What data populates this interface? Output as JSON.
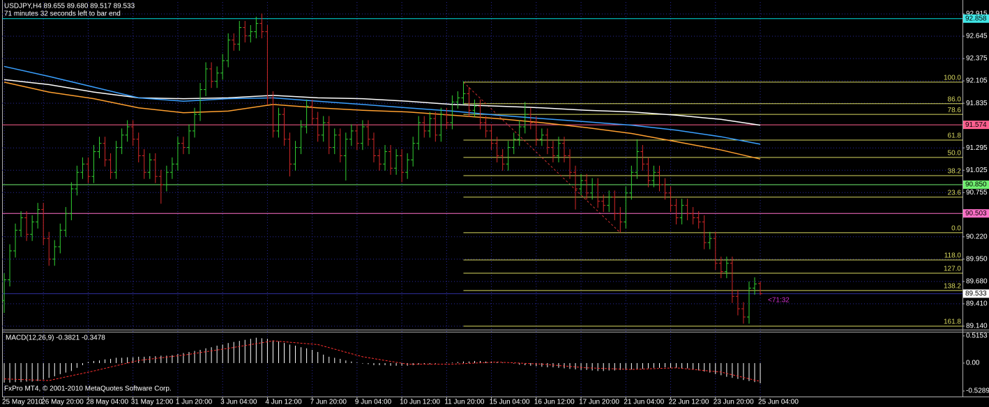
{
  "chart_data": [
    {
      "type": "ohlc",
      "title": "USDJPY,H4  89.655 89.680 89.517 89.533",
      "subtitle": "71 minutes 32 seconds left to bar end",
      "countdown": "<71:32",
      "footer": "FxPro MT4, © 2001-2010 MetaQuotes Software Corp.",
      "categories": [
        "25 May 2010",
        null,
        null,
        null,
        null,
        null,
        null,
        "26 May 20:00",
        null,
        null,
        null,
        null,
        null,
        null,
        null,
        "28 May 04:00",
        null,
        null,
        null,
        null,
        null,
        null,
        null,
        "31 May 12:00",
        null,
        null,
        null,
        null,
        null,
        null,
        null,
        "1 Jun 20:00",
        null,
        null,
        null,
        null,
        null,
        null,
        null,
        "3 Jun 04:00",
        null,
        null,
        null,
        null,
        null,
        null,
        null,
        "4 Jun 12:00",
        null,
        null,
        null,
        null,
        null,
        null,
        null,
        "7 Jun 20:00",
        null,
        null,
        null,
        null,
        null,
        null,
        null,
        "9 Jun 04:00",
        null,
        null,
        null,
        null,
        null,
        null,
        null,
        "10 Jun 12:00",
        null,
        null,
        null,
        null,
        null,
        null,
        null,
        "11 Jun 20:00",
        null,
        null,
        null,
        null,
        null,
        null,
        null,
        "15 Jun 04:00",
        null,
        null,
        null,
        null,
        null,
        null,
        null,
        "16 Jun 12:00",
        null,
        null,
        null,
        null,
        null,
        null,
        null,
        "17 Jun 20:00",
        null,
        null,
        null,
        null,
        null,
        null,
        null,
        "21 Jun 04:00",
        null,
        null,
        null,
        null,
        null,
        null,
        null,
        "22 Jun 12:00",
        null,
        null,
        null,
        null,
        null,
        null,
        null,
        "23 Jun 20:00",
        null,
        null,
        null,
        null,
        null,
        null,
        null,
        "25 Jun 04:00"
      ],
      "open": [
        89.45,
        89.7,
        90.05,
        90.3,
        90.45,
        90.25,
        90.4,
        90.55,
        90.2,
        89.95,
        90.1,
        90.3,
        90.5,
        90.8,
        91.0,
        91.1,
        90.95,
        91.25,
        91.35,
        91.15,
        91.0,
        91.3,
        91.45,
        91.55,
        91.4,
        91.2,
        91.0,
        91.15,
        90.95,
        90.85,
        91.0,
        91.1,
        91.35,
        91.3,
        91.5,
        91.7,
        92.0,
        92.25,
        92.1,
        92.2,
        92.35,
        92.6,
        92.55,
        92.75,
        92.65,
        92.7,
        92.8,
        92.7,
        91.9,
        91.5,
        91.7,
        91.4,
        91.1,
        91.3,
        91.55,
        91.8,
        91.65,
        91.45,
        91.6,
        91.3,
        91.45,
        91.2,
        91.4,
        91.5,
        91.35,
        91.55,
        91.4,
        91.2,
        91.1,
        91.25,
        91.05,
        91.2,
        91.0,
        91.15,
        91.35,
        91.6,
        91.5,
        91.65,
        91.45,
        91.7,
        91.6,
        91.85,
        91.9,
        91.95,
        91.75,
        91.8,
        91.6,
        91.5,
        91.35,
        91.2,
        91.1,
        91.3,
        91.4,
        91.55,
        91.7,
        91.6,
        91.4,
        91.45,
        91.3,
        91.2,
        91.35,
        91.2,
        91.0,
        90.8,
        90.9,
        90.75,
        90.85,
        90.65,
        90.6,
        90.7,
        90.5,
        90.4,
        90.75,
        91.0,
        91.25,
        91.1,
        90.9,
        91.0,
        90.85,
        90.75,
        90.6,
        90.45,
        90.6,
        90.5,
        90.45,
        90.4,
        90.15,
        90.2,
        89.9,
        89.8,
        89.9,
        89.5,
        89.35,
        89.25,
        89.6,
        89.655
      ],
      "high": [
        89.78,
        90.13,
        90.38,
        90.53,
        90.53,
        90.48,
        90.63,
        90.63,
        90.28,
        90.18,
        90.38,
        90.58,
        90.88,
        91.08,
        91.18,
        91.18,
        91.33,
        91.43,
        91.43,
        91.23,
        91.38,
        91.53,
        91.63,
        91.63,
        91.48,
        91.28,
        91.23,
        91.23,
        91.03,
        91.08,
        91.18,
        91.43,
        91.43,
        91.58,
        91.78,
        92.08,
        92.33,
        92.33,
        92.28,
        92.43,
        92.68,
        92.68,
        92.83,
        92.83,
        92.78,
        92.88,
        92.92,
        92.78,
        91.98,
        91.78,
        91.78,
        91.48,
        91.38,
        91.63,
        91.88,
        91.88,
        91.73,
        91.68,
        91.68,
        91.53,
        91.53,
        91.48,
        91.58,
        91.58,
        91.63,
        91.63,
        91.48,
        91.28,
        91.33,
        91.33,
        91.28,
        91.28,
        91.23,
        91.43,
        91.68,
        91.68,
        91.73,
        91.73,
        91.78,
        91.78,
        91.93,
        91.98,
        92.1,
        92.03,
        91.88,
        91.88,
        91.68,
        91.58,
        91.43,
        91.28,
        91.38,
        91.48,
        91.63,
        91.85,
        91.78,
        91.68,
        91.53,
        91.53,
        91.38,
        91.43,
        91.43,
        91.28,
        91.08,
        90.98,
        90.98,
        90.93,
        90.93,
        90.73,
        90.78,
        90.78,
        90.58,
        90.83,
        91.08,
        91.4,
        91.33,
        91.18,
        91.08,
        91.08,
        90.93,
        90.83,
        90.68,
        90.68,
        90.68,
        90.58,
        90.53,
        90.48,
        90.28,
        90.28,
        89.98,
        89.98,
        89.98,
        89.58,
        89.43,
        89.68,
        89.73,
        89.68
      ],
      "low": [
        89.3,
        89.62,
        89.97,
        90.22,
        90.17,
        90.17,
        90.32,
        90.12,
        89.87,
        89.87,
        90.02,
        90.22,
        90.42,
        90.72,
        90.92,
        90.87,
        90.87,
        91.17,
        91.07,
        90.92,
        90.92,
        91.22,
        91.37,
        91.32,
        91.12,
        90.92,
        90.92,
        90.87,
        90.62,
        90.77,
        90.92,
        91.02,
        91.22,
        91.22,
        91.42,
        91.62,
        91.92,
        92.02,
        92.02,
        92.12,
        92.27,
        92.47,
        92.47,
        92.57,
        92.57,
        92.62,
        92.62,
        91.82,
        91.42,
        91.42,
        91.32,
        90.95,
        91.02,
        91.22,
        91.47,
        91.57,
        91.37,
        91.37,
        91.22,
        91.22,
        91.12,
        90.9,
        91.32,
        91.27,
        91.27,
        91.32,
        91.12,
        91.02,
        91.02,
        90.97,
        90.97,
        90.88,
        90.92,
        91.07,
        91.27,
        91.42,
        91.42,
        91.37,
        91.37,
        91.52,
        91.52,
        91.77,
        91.82,
        91.67,
        91.67,
        91.52,
        91.42,
        91.27,
        91.12,
        91.02,
        91.02,
        91.22,
        91.32,
        91.47,
        91.52,
        91.32,
        91.32,
        91.22,
        91.12,
        91.12,
        91.12,
        90.92,
        90.55,
        90.72,
        90.67,
        90.67,
        90.57,
        90.52,
        90.52,
        90.42,
        90.27,
        90.32,
        90.67,
        90.92,
        91.02,
        90.82,
        90.82,
        90.77,
        90.67,
        90.52,
        90.37,
        90.37,
        90.42,
        90.37,
        90.32,
        90.07,
        90.07,
        89.82,
        89.72,
        89.72,
        89.42,
        89.27,
        89.17,
        89.17,
        89.52,
        89.517
      ],
      "close": [
        89.7,
        90.05,
        90.3,
        90.45,
        90.25,
        90.4,
        90.55,
        90.2,
        89.95,
        90.1,
        90.3,
        90.5,
        90.8,
        91.0,
        91.1,
        90.95,
        91.25,
        91.35,
        91.15,
        91.0,
        91.3,
        91.45,
        91.55,
        91.4,
        91.2,
        91.0,
        91.15,
        90.95,
        90.85,
        91.0,
        91.1,
        91.35,
        91.3,
        91.5,
        91.7,
        92.0,
        92.25,
        92.1,
        92.2,
        92.35,
        92.6,
        92.55,
        92.75,
        92.65,
        92.7,
        92.8,
        92.7,
        91.9,
        91.5,
        91.7,
        91.4,
        91.1,
        91.3,
        91.55,
        91.8,
        91.65,
        91.45,
        91.6,
        91.3,
        91.45,
        91.2,
        91.4,
        91.5,
        91.35,
        91.55,
        91.4,
        91.2,
        91.1,
        91.25,
        91.05,
        91.2,
        91.0,
        91.15,
        91.35,
        91.6,
        91.5,
        91.65,
        91.45,
        91.7,
        91.6,
        91.85,
        91.9,
        91.95,
        91.75,
        91.8,
        91.6,
        91.5,
        91.35,
        91.2,
        91.1,
        91.3,
        91.4,
        91.55,
        91.7,
        91.6,
        91.4,
        91.45,
        91.3,
        91.2,
        91.35,
        91.2,
        91.0,
        90.8,
        90.9,
        90.75,
        90.85,
        90.65,
        90.6,
        90.7,
        90.5,
        90.4,
        90.75,
        91.0,
        91.25,
        91.1,
        90.9,
        91.0,
        90.85,
        90.75,
        90.6,
        90.45,
        90.6,
        90.5,
        90.45,
        90.4,
        90.15,
        90.2,
        89.9,
        89.8,
        89.9,
        89.5,
        89.35,
        89.25,
        89.6,
        89.65,
        89.533
      ],
      "up_color": "#32d232",
      "down_color": "#d42828",
      "ylim": [
        89.106,
        93.058
      ],
      "yticks": [
        92.915,
        92.645,
        92.375,
        92.105,
        91.835,
        91.295,
        91.025,
        90.755,
        {
          "value": 90.22,
          "label": "90.220"
        },
        {
          "value": 89.95,
          "label": "89.950"
        },
        {
          "value": 89.68,
          "label": "89.680"
        },
        {
          "value": 89.41,
          "label": "89.410"
        },
        {
          "value": 89.14,
          "label": "89.140"
        }
      ],
      "grid": true,
      "moving_averages": [
        {
          "color": "#ffffff",
          "x": [
            0,
            8,
            16,
            24,
            32,
            40,
            48,
            56,
            64,
            72,
            80,
            88,
            96,
            104,
            112,
            120,
            128,
            135
          ],
          "values": [
            92.12,
            92.06,
            91.97,
            91.9,
            91.89,
            91.9,
            91.93,
            91.9,
            91.89,
            91.86,
            91.82,
            91.8,
            91.78,
            91.75,
            91.73,
            91.69,
            91.64,
            91.57
          ]
        },
        {
          "color": "#3aa0ff",
          "x": [
            0,
            8,
            16,
            24,
            32,
            40,
            48,
            56,
            64,
            72,
            80,
            88,
            96,
            104,
            112,
            120,
            128,
            135
          ],
          "values": [
            92.28,
            92.16,
            92.03,
            91.9,
            91.86,
            91.89,
            91.9,
            91.86,
            91.82,
            91.78,
            91.74,
            91.69,
            91.65,
            91.61,
            91.57,
            91.51,
            91.43,
            91.34
          ]
        },
        {
          "color": "#ffa030",
          "x": [
            0,
            8,
            16,
            24,
            32,
            40,
            48,
            56,
            64,
            72,
            80,
            88,
            96,
            104,
            112,
            120,
            128,
            135
          ],
          "values": [
            92.09,
            91.97,
            91.89,
            91.78,
            91.72,
            91.74,
            91.82,
            91.78,
            91.75,
            91.73,
            91.69,
            91.65,
            91.6,
            91.54,
            91.47,
            91.37,
            91.27,
            91.16
          ]
        }
      ],
      "price_lines": [
        {
          "price": 92.858,
          "color": "#00e0e0",
          "label_color": "#40e8e8"
        },
        {
          "price": 91.574,
          "color": "#ff6090",
          "label_color": "#ff6090"
        },
        {
          "price": {
            "value": 90.85,
            "label": "90.850"
          },
          "color": "#70f070",
          "label_color": "#70f070"
        },
        {
          "price": 90.503,
          "color": "#ff70c8",
          "label_color": "#ff70c8"
        },
        {
          "price": 89.533,
          "color": "#3030a0",
          "label_color": "#ffffff"
        }
      ],
      "fibonacci": {
        "color": "#d8d860",
        "start_bar": 82,
        "trendline": {
          "color": "#d03030",
          "x": [
            82,
            110
          ],
          "values": [
            92.09,
            90.27
          ]
        },
        "levels": [
          {
            "label": "100.0",
            "price": 92.09
          },
          {
            "label": "86.0",
            "price": 91.83
          },
          {
            "label": "78.6",
            "price": 91.7
          },
          {
            "label": "61.8",
            "price": 91.39
          },
          {
            "label": "50.0",
            "price": 91.18
          },
          {
            "label": "38.2",
            "price": 90.96
          },
          {
            "label": "23.6",
            "price": 90.7
          },
          {
            "label": "0.0",
            "price": 90.27
          },
          {
            "label": "118.0",
            "price": 89.94
          },
          {
            "label": "127.0",
            "price": 89.78
          },
          {
            "label": "138.2",
            "price": 89.57
          },
          {
            "label": "161.8",
            "price": 89.14
          }
        ]
      }
    },
    {
      "type": "macd",
      "title": "MACD(12,26,9) -0.3821 -0.3478",
      "color": "#ffffff",
      "values": [
        -0.37,
        -0.37,
        -0.36,
        -0.36,
        -0.35,
        -0.35,
        -0.34,
        -0.31,
        -0.28,
        -0.25,
        -0.21,
        -0.18,
        -0.15,
        -0.09,
        -0.04,
        0.02,
        0.04,
        0.05,
        0.07,
        0.08,
        0.1,
        0.1,
        0.11,
        0.11,
        0.12,
        0.12,
        0.13,
        0.13,
        0.14,
        0.14,
        0.15,
        0.17,
        0.19,
        0.21,
        0.23,
        0.25,
        0.28,
        0.3,
        0.33,
        0.35,
        0.38,
        0.4,
        0.42,
        0.44,
        0.46,
        0.48,
        0.47,
        0.46,
        0.43,
        0.41,
        0.38,
        0.35,
        0.33,
        0.3,
        0.28,
        0.25,
        0.21,
        0.16,
        0.12,
        0.1,
        0.08,
        0.05,
        0.03,
        0.01,
        -0.01,
        -0.02,
        -0.04,
        -0.04,
        -0.04,
        -0.05,
        -0.05,
        -0.05,
        -0.05,
        -0.04,
        -0.03,
        -0.02,
        -0.02,
        -0.01,
        0.0,
        0.01,
        0.01,
        0.02,
        0.03,
        0.03,
        0.04,
        0.04,
        0.03,
        0.03,
        0.02,
        0.01,
        0.0,
        -0.01,
        -0.03,
        -0.04,
        -0.05,
        -0.06,
        -0.07,
        -0.08,
        -0.08,
        -0.09,
        -0.1,
        -0.11,
        -0.12,
        -0.13,
        -0.13,
        -0.14,
        -0.15,
        -0.15,
        -0.14,
        -0.14,
        -0.13,
        -0.13,
        -0.12,
        -0.11,
        -0.11,
        -0.1,
        -0.09,
        -0.09,
        -0.08,
        -0.09,
        -0.09,
        -0.1,
        -0.1,
        -0.12,
        -0.14,
        -0.16,
        -0.18,
        -0.21,
        -0.23,
        -0.26,
        -0.28,
        -0.3,
        -0.32,
        -0.34,
        -0.36,
        -0.3821
      ],
      "signal": {
        "color": "#ff3030",
        "x": [
          0,
          8,
          16,
          24,
          32,
          40,
          48,
          56,
          64,
          72,
          80,
          88,
          96,
          104,
          112,
          120,
          128,
          135
        ],
        "values": [
          -0.3,
          -0.33,
          -0.15,
          0.05,
          0.15,
          0.28,
          0.42,
          0.35,
          0.12,
          -0.02,
          -0.02,
          0.02,
          -0.02,
          -0.09,
          -0.12,
          -0.09,
          -0.17,
          -0.3478
        ]
      },
      "ylim": [
        -0.594,
        0.567
      ],
      "yticks": [
        0.5153,
        {
          "value": 0,
          "label": "0.00"
        },
        -0.5289
      ]
    }
  ]
}
